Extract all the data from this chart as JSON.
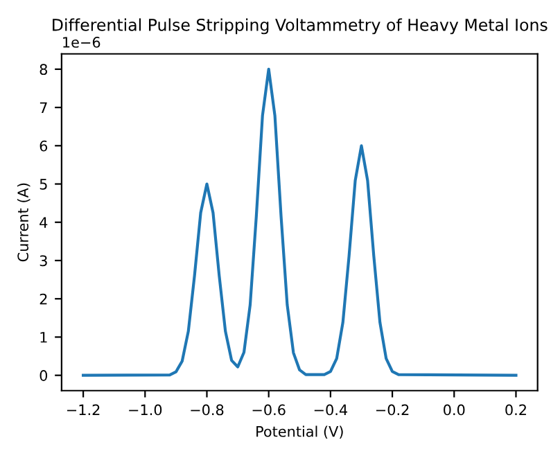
{
  "chart_data": {
    "type": "line",
    "title": "Differential Pulse Stripping Voltammetry of Heavy Metal Ions",
    "xlabel": "Potential (V)",
    "ylabel": "Current (A)",
    "annotations": [
      "1e−6"
    ],
    "x": [
      -1.2,
      -0.92,
      -0.9,
      -0.88,
      -0.86,
      -0.84,
      -0.82,
      -0.8,
      -0.78,
      -0.76,
      -0.74,
      -0.72,
      -0.7,
      -0.68,
      -0.66,
      -0.64,
      -0.62,
      -0.6,
      -0.58,
      -0.56,
      -0.54,
      -0.52,
      -0.5,
      -0.48,
      -0.42,
      -0.4,
      -0.38,
      -0.36,
      -0.34,
      -0.32,
      -0.3,
      -0.28,
      -0.26,
      -0.24,
      -0.22,
      -0.2,
      -0.18,
      0.2
    ],
    "series": [
      {
        "color": "#1f77b4",
        "values": [
          0,
          0.01,
          0.09,
          0.37,
          1.15,
          2.6,
          4.25,
          5.0,
          4.25,
          2.6,
          1.15,
          0.39,
          0.22,
          0.6,
          1.84,
          4.16,
          6.79,
          8.0,
          6.79,
          4.16,
          1.84,
          0.59,
          0.14,
          0.02,
          0.02,
          0.1,
          0.44,
          1.38,
          3.12,
          5.09,
          6.0,
          5.09,
          3.12,
          1.38,
          0.44,
          0.1,
          0.02,
          0
        ]
      }
    ],
    "xlim": [
      -1.27,
      0.27
    ],
    "ylim": [
      -0.4,
      8.4
    ],
    "xticks": [
      {
        "value": -1.2,
        "label": "−1.2"
      },
      {
        "value": -1.0,
        "label": "−1.0"
      },
      {
        "value": -0.8,
        "label": "−0.8"
      },
      {
        "value": -0.6,
        "label": "−0.6"
      },
      {
        "value": -0.4,
        "label": "−0.4"
      },
      {
        "value": -0.2,
        "label": "−0.2"
      },
      {
        "value": 0.0,
        "label": "0.0"
      },
      {
        "value": 0.2,
        "label": "0.2"
      }
    ],
    "yticks": [
      0,
      1,
      2,
      3,
      4,
      5,
      6,
      7,
      8
    ],
    "grid": false,
    "marker": "none",
    "line_style": "solid"
  }
}
